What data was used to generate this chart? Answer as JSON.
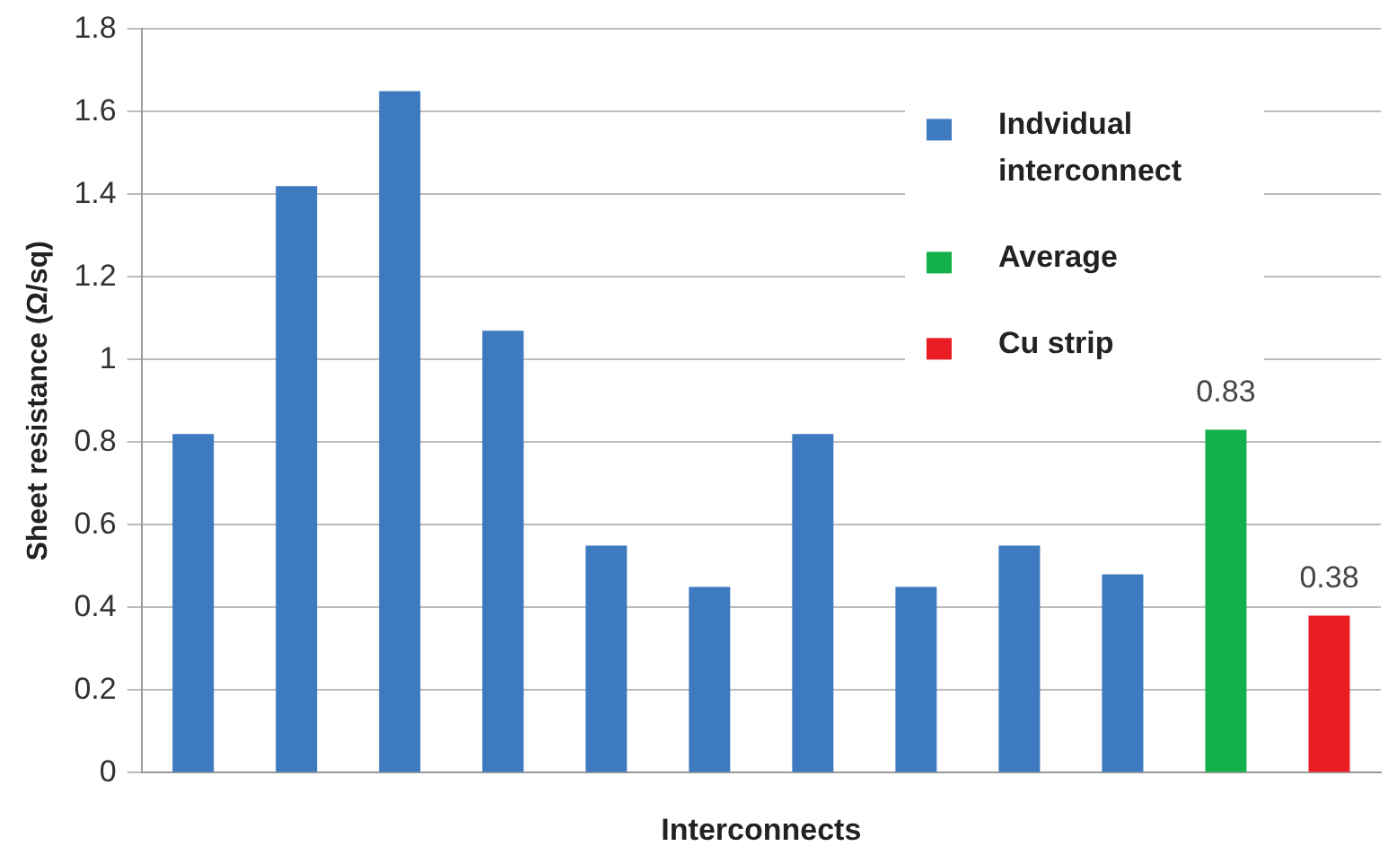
{
  "chart_data": {
    "type": "bar",
    "xlabel": "Interconnects",
    "ylabel": "Sheet resistance (Ω/sq)",
    "categories": [
      null,
      null,
      null,
      null,
      null,
      null,
      null,
      null,
      null,
      null,
      null,
      null
    ],
    "series": [
      {
        "name": "Indvidual interconnect",
        "color": "#3d7abf",
        "values": [
          0.82,
          1.42,
          1.65,
          1.07,
          0.55,
          0.45,
          0.82,
          0.45,
          0.55,
          0.48,
          null,
          null
        ]
      },
      {
        "name": "Average",
        "color": "#14b04c",
        "values": [
          null,
          null,
          null,
          null,
          null,
          null,
          null,
          null,
          null,
          null,
          0.83,
          null
        ],
        "value_labels": [
          null,
          null,
          null,
          null,
          null,
          null,
          null,
          null,
          null,
          null,
          "0.83",
          null
        ]
      },
      {
        "name": "Cu strip",
        "color": "#ea1c24",
        "values": [
          null,
          null,
          null,
          null,
          null,
          null,
          null,
          null,
          null,
          null,
          null,
          0.38
        ],
        "value_labels": [
          null,
          null,
          null,
          null,
          null,
          null,
          null,
          null,
          null,
          null,
          null,
          "0.38"
        ]
      }
    ],
    "ylim": [
      0,
      1.8
    ],
    "yticks": [
      0,
      0.2,
      0.4,
      0.6,
      0.8,
      1,
      1.2,
      1.4,
      1.6,
      1.8
    ],
    "grid": "y",
    "legend": "top right"
  }
}
